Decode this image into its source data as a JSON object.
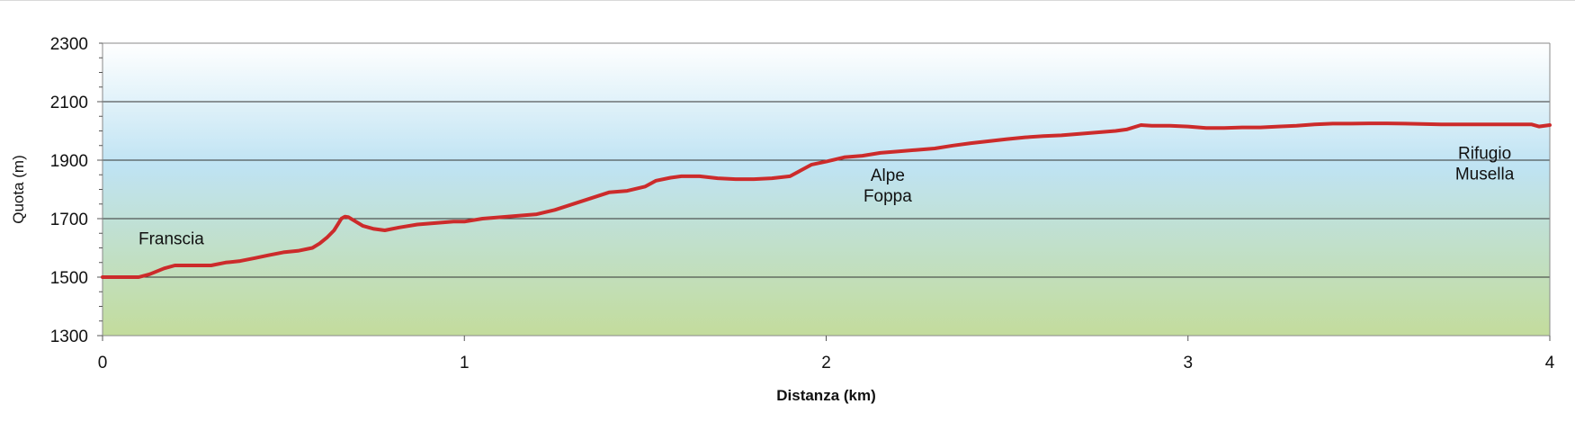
{
  "chart_data": {
    "type": "line",
    "title": "",
    "xlabel": "Distanza (km)",
    "ylabel": "Quota (m)",
    "xlim": [
      0,
      4
    ],
    "ylim": [
      1300,
      2300
    ],
    "x_ticks": [
      0,
      1,
      2,
      3,
      4
    ],
    "y_ticks": [
      1300,
      1500,
      1700,
      1900,
      2100,
      2300
    ],
    "grid": "horizontal",
    "colors": {
      "line": "#cc2b2b",
      "bg_top": "#ffffff",
      "bg_mid": "#bfe3f3",
      "bg_bottom": "#c3dc9c",
      "grid": "#333333"
    },
    "series": [
      {
        "x": [
          0,
          0.03,
          0.1,
          0.13,
          0.17,
          0.2,
          0.3,
          0.34,
          0.38,
          0.42,
          0.46,
          0.5,
          0.54,
          0.58,
          0.6,
          0.62,
          0.64,
          0.65,
          0.66,
          0.67,
          0.68,
          0.7,
          0.72,
          0.75,
          0.78,
          0.82,
          0.87,
          0.92,
          0.97,
          1.0,
          1.05,
          1.1,
          1.15,
          1.2,
          1.25,
          1.3,
          1.35,
          1.4,
          1.45,
          1.5,
          1.53,
          1.57,
          1.6,
          1.65,
          1.7,
          1.75,
          1.8,
          1.85,
          1.9,
          1.93,
          1.96,
          2.0,
          2.05,
          2.1,
          2.15,
          2.2,
          2.25,
          2.3,
          2.35,
          2.4,
          2.45,
          2.5,
          2.55,
          2.6,
          2.65,
          2.7,
          2.75,
          2.8,
          2.83,
          2.87,
          2.9,
          2.95,
          3.0,
          3.05,
          3.1,
          3.15,
          3.2,
          3.25,
          3.3,
          3.35,
          3.4,
          3.45,
          3.5,
          3.55,
          3.6,
          3.7,
          3.8,
          3.9,
          3.95,
          3.97,
          4.0
        ],
        "y": [
          1500,
          1500,
          1500,
          1510,
          1530,
          1540,
          1540,
          1550,
          1555,
          1565,
          1575,
          1585,
          1590,
          1600,
          1615,
          1635,
          1660,
          1680,
          1700,
          1707,
          1705,
          1690,
          1675,
          1665,
          1660,
          1670,
          1680,
          1685,
          1690,
          1690,
          1700,
          1705,
          1710,
          1715,
          1730,
          1750,
          1770,
          1790,
          1795,
          1810,
          1830,
          1840,
          1845,
          1845,
          1838,
          1835,
          1835,
          1838,
          1845,
          1865,
          1885,
          1895,
          1910,
          1915,
          1925,
          1930,
          1935,
          1940,
          1950,
          1958,
          1965,
          1972,
          1978,
          1982,
          1985,
          1990,
          1995,
          2000,
          2005,
          2020,
          2018,
          2018,
          2015,
          2010,
          2010,
          2012,
          2012,
          2015,
          2018,
          2022,
          2025,
          2025,
          2026,
          2026,
          2025,
          2022,
          2022,
          2022,
          2022,
          2015,
          2020
        ]
      }
    ],
    "annotations": [
      {
        "lines": [
          "Franscia"
        ],
        "x": 0.19,
        "y": 1612
      },
      {
        "lines": [
          "Alpe",
          "Foppa"
        ],
        "x": 2.17,
        "y": 1830
      },
      {
        "lines": [
          "Rifugio",
          "Musella"
        ],
        "x": 3.82,
        "y": 1905
      }
    ]
  }
}
